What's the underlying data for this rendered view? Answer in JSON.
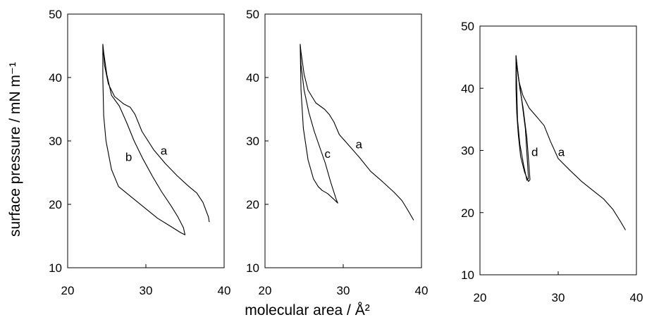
{
  "figure": {
    "ylabel": "surface pressure / mN m⁻¹",
    "xlabel": "molecular area / Å²"
  },
  "chart_data": [
    {
      "type": "line",
      "xlim": [
        20,
        40
      ],
      "ylim": [
        10,
        50
      ],
      "xticks": [
        "20",
        "30",
        "40"
      ],
      "yticks": [
        "10",
        "20",
        "30",
        "40",
        "50"
      ],
      "grid": false,
      "series": [
        {
          "name": "a",
          "x": [
            24.5,
            24.7,
            25.2,
            26.0,
            27.2,
            28.0,
            28.6,
            29.5,
            31.0,
            32.5,
            34.0,
            35.5,
            36.5,
            37.3,
            38.0,
            38.1
          ],
          "y": [
            45.3,
            42.0,
            39.0,
            37.0,
            35.8,
            35.3,
            34.2,
            31.5,
            28.6,
            26.4,
            24.5,
            22.8,
            21.8,
            20.3,
            18.0,
            17.2
          ]
        },
        {
          "name": "b",
          "x": [
            24.5,
            24.6,
            25.0,
            25.6,
            26.6,
            27.5,
            28.5,
            29.6,
            30.8,
            32.0,
            33.2,
            34.1,
            34.8,
            35.0,
            34.5,
            33.2,
            31.5,
            29.5,
            27.5,
            26.5,
            25.6,
            24.9,
            24.6,
            24.5,
            24.5
          ],
          "y": [
            45.2,
            44.0,
            40.5,
            37.2,
            35.5,
            33.0,
            30.0,
            27.2,
            24.5,
            22.0,
            19.8,
            18.0,
            16.3,
            15.2,
            15.5,
            16.5,
            17.8,
            19.8,
            21.8,
            22.8,
            25.5,
            30.0,
            34.0,
            40.0,
            45.2
          ]
        }
      ],
      "annotations": [
        {
          "text": "a",
          "x": 32.3,
          "y": 28.5
        },
        {
          "text": "b",
          "x": 27.8,
          "y": 27.5
        }
      ]
    },
    {
      "type": "line",
      "xlim": [
        20,
        40
      ],
      "ylim": [
        10,
        50
      ],
      "xticks": [
        "20",
        "30",
        "40"
      ],
      "yticks": [
        "10",
        "20",
        "30",
        "40",
        "50"
      ],
      "grid": false,
      "series": [
        {
          "name": "a",
          "x": [
            24.5,
            24.6,
            25.0,
            25.5,
            26.5,
            27.6,
            28.2,
            28.8,
            29.5,
            30.5,
            32.0,
            33.5,
            35.0,
            36.5,
            37.5,
            38.3,
            39.0
          ],
          "y": [
            45.3,
            44.0,
            40.5,
            38.0,
            36.0,
            35.0,
            34.2,
            33.0,
            31.0,
            29.6,
            27.5,
            25.2,
            23.6,
            21.9,
            20.6,
            19.0,
            17.5
          ]
        },
        {
          "name": "c",
          "x": [
            24.5,
            24.6,
            25.0,
            25.6,
            26.3,
            27.0,
            27.7,
            28.4,
            29.1,
            29.3,
            28.8,
            28.0,
            27.3,
            26.8,
            26.2,
            25.5,
            24.9,
            24.6,
            24.5
          ],
          "y": [
            45.2,
            42.0,
            38.0,
            34.5,
            31.5,
            29.0,
            26.5,
            23.5,
            20.8,
            20.2,
            20.8,
            21.7,
            22.2,
            22.8,
            24.0,
            27.0,
            32.0,
            38.0,
            45.2
          ]
        }
      ],
      "annotations": [
        {
          "text": "a",
          "x": 32.0,
          "y": 29.5
        },
        {
          "text": "c",
          "x": 28.0,
          "y": 28.0
        }
      ]
    },
    {
      "type": "line",
      "xlim": [
        20,
        40
      ],
      "ylim": [
        10,
        50
      ],
      "xticks": [
        "20",
        "30",
        "40"
      ],
      "yticks": [
        "10",
        "20",
        "30",
        "40",
        "50"
      ],
      "grid": false,
      "series": [
        {
          "name": "a",
          "x": [
            24.6,
            24.7,
            25.0,
            25.5,
            26.3,
            27.2,
            28.2,
            29.0,
            30.0,
            31.5,
            33.0,
            34.5,
            35.8,
            37.0,
            38.0,
            38.6
          ],
          "y": [
            45.3,
            43.5,
            41.0,
            38.8,
            36.8,
            35.5,
            34.0,
            31.5,
            28.7,
            26.8,
            25.0,
            23.5,
            22.2,
            20.5,
            18.5,
            17.2
          ]
        },
        {
          "name": "d",
          "x": [
            24.6,
            24.8,
            25.1,
            25.5,
            26.0,
            26.4,
            26.2,
            25.7,
            25.2,
            24.9,
            24.7,
            24.6,
            24.6
          ],
          "y": [
            45.3,
            43.0,
            40.0,
            37.0,
            32.0,
            25.3,
            25.0,
            26.5,
            29.0,
            32.5,
            36.0,
            40.0,
            45.3
          ]
        },
        {
          "name": "",
          "x": [
            24.6,
            24.9,
            25.3,
            25.8,
            26.2,
            26.0,
            25.6,
            25.1,
            24.8,
            24.7,
            24.6
          ],
          "y": [
            45.0,
            42.0,
            38.5,
            33.5,
            25.5,
            25.2,
            27.5,
            31.0,
            35.0,
            40.0,
            45.0
          ]
        }
      ],
      "annotations": [
        {
          "text": "a",
          "x": 30.4,
          "y": 29.8
        },
        {
          "text": "d",
          "x": 27.0,
          "y": 29.8
        }
      ]
    }
  ]
}
